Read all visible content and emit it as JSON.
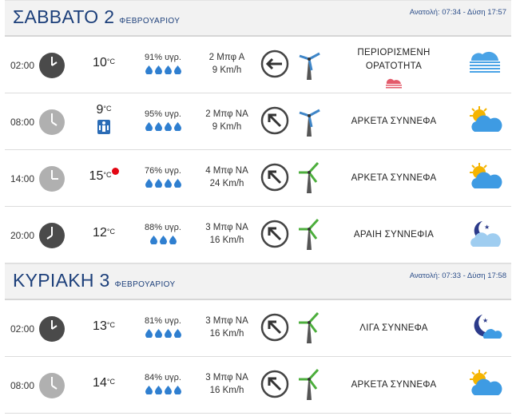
{
  "days": [
    {
      "title": "ΣΑΒΒΑΤΟ 2",
      "month": "ΦΕΒΡΟΥΑΡΙΟΥ",
      "sun": "Ανατολή: 07:34 - Δύση 17:57",
      "rows": [
        {
          "time": "02:00",
          "clock": "dark",
          "temp": "10",
          "temp_unit": "°C",
          "humidity": "91% υγρ.",
          "wind_bf": "2 Μπφ Α",
          "wind_kmh": "9 Km/h",
          "arrow": "west",
          "turbine": "blue",
          "desc": [
            "ΠΕΡΙΟΡΙΣΜΕΝΗ",
            "ΟΡΑΤΟΤΗΤΑ"
          ],
          "icon": "fog-icon",
          "extra": "fog-warning"
        },
        {
          "time": "08:00",
          "clock": "light",
          "temp": "9",
          "temp_unit": "°C",
          "humidity": "95% υγρ.",
          "wind_bf": "2 Μπφ ΝΑ",
          "wind_kmh": "9 Km/h",
          "arrow": "nw",
          "turbine": "blue",
          "desc": [
            "ΑΡΚΕΤΑ ΣΥΝΝΕΦΑ"
          ],
          "icon": "partly-cloudy-day-icon",
          "extra": "feels-cold"
        },
        {
          "time": "14:00",
          "clock": "light",
          "temp": "15",
          "temp_unit": "°C",
          "humidity": "76% υγρ.",
          "wind_bf": "4 Μπφ ΝΑ",
          "wind_kmh": "24 Km/h",
          "arrow": "nw",
          "turbine": "green",
          "desc": [
            "ΑΡΚΕΤΑ ΣΥΝΝΕΦΑ"
          ],
          "icon": "partly-cloudy-day-icon",
          "extra": "red-dot"
        },
        {
          "time": "20:00",
          "clock": "dark",
          "temp": "12",
          "temp_unit": "°C",
          "humidity": "88% υγρ.",
          "wind_bf": "3 Μπφ ΝΑ",
          "wind_kmh": "16 Km/h",
          "arrow": "nw",
          "turbine": "green",
          "desc": [
            "ΑΡΑΙΗ ΣΥΝΝΕΦΙΑ"
          ],
          "icon": "partly-cloudy-night-icon",
          "extra": ""
        }
      ]
    },
    {
      "title": "ΚΥΡΙΑΚΗ 3",
      "month": "ΦΕΒΡΟΥΑΡΙΟΥ",
      "sun": "Ανατολή: 07:33 - Δύση 17:58",
      "rows": [
        {
          "time": "02:00",
          "clock": "dark",
          "temp": "13",
          "temp_unit": "°C",
          "humidity": "81% υγρ.",
          "wind_bf": "3 Μπφ ΝΑ",
          "wind_kmh": "16 Km/h",
          "arrow": "nw",
          "turbine": "green",
          "desc": [
            "ΛΙΓΑ ΣΥΝΝΕΦΑ"
          ],
          "icon": "moon-cloud-icon",
          "extra": ""
        },
        {
          "time": "08:00",
          "clock": "light",
          "temp": "14",
          "temp_unit": "°C",
          "humidity": "84% υγρ.",
          "wind_bf": "3 Μπφ ΝΑ",
          "wind_kmh": "16 Km/h",
          "arrow": "nw",
          "turbine": "green",
          "desc": [
            "ΑΡΚΕΤΑ ΣΥΝΝΕΦΑ"
          ],
          "icon": "partly-cloudy-day-icon",
          "extra": ""
        }
      ]
    }
  ]
}
